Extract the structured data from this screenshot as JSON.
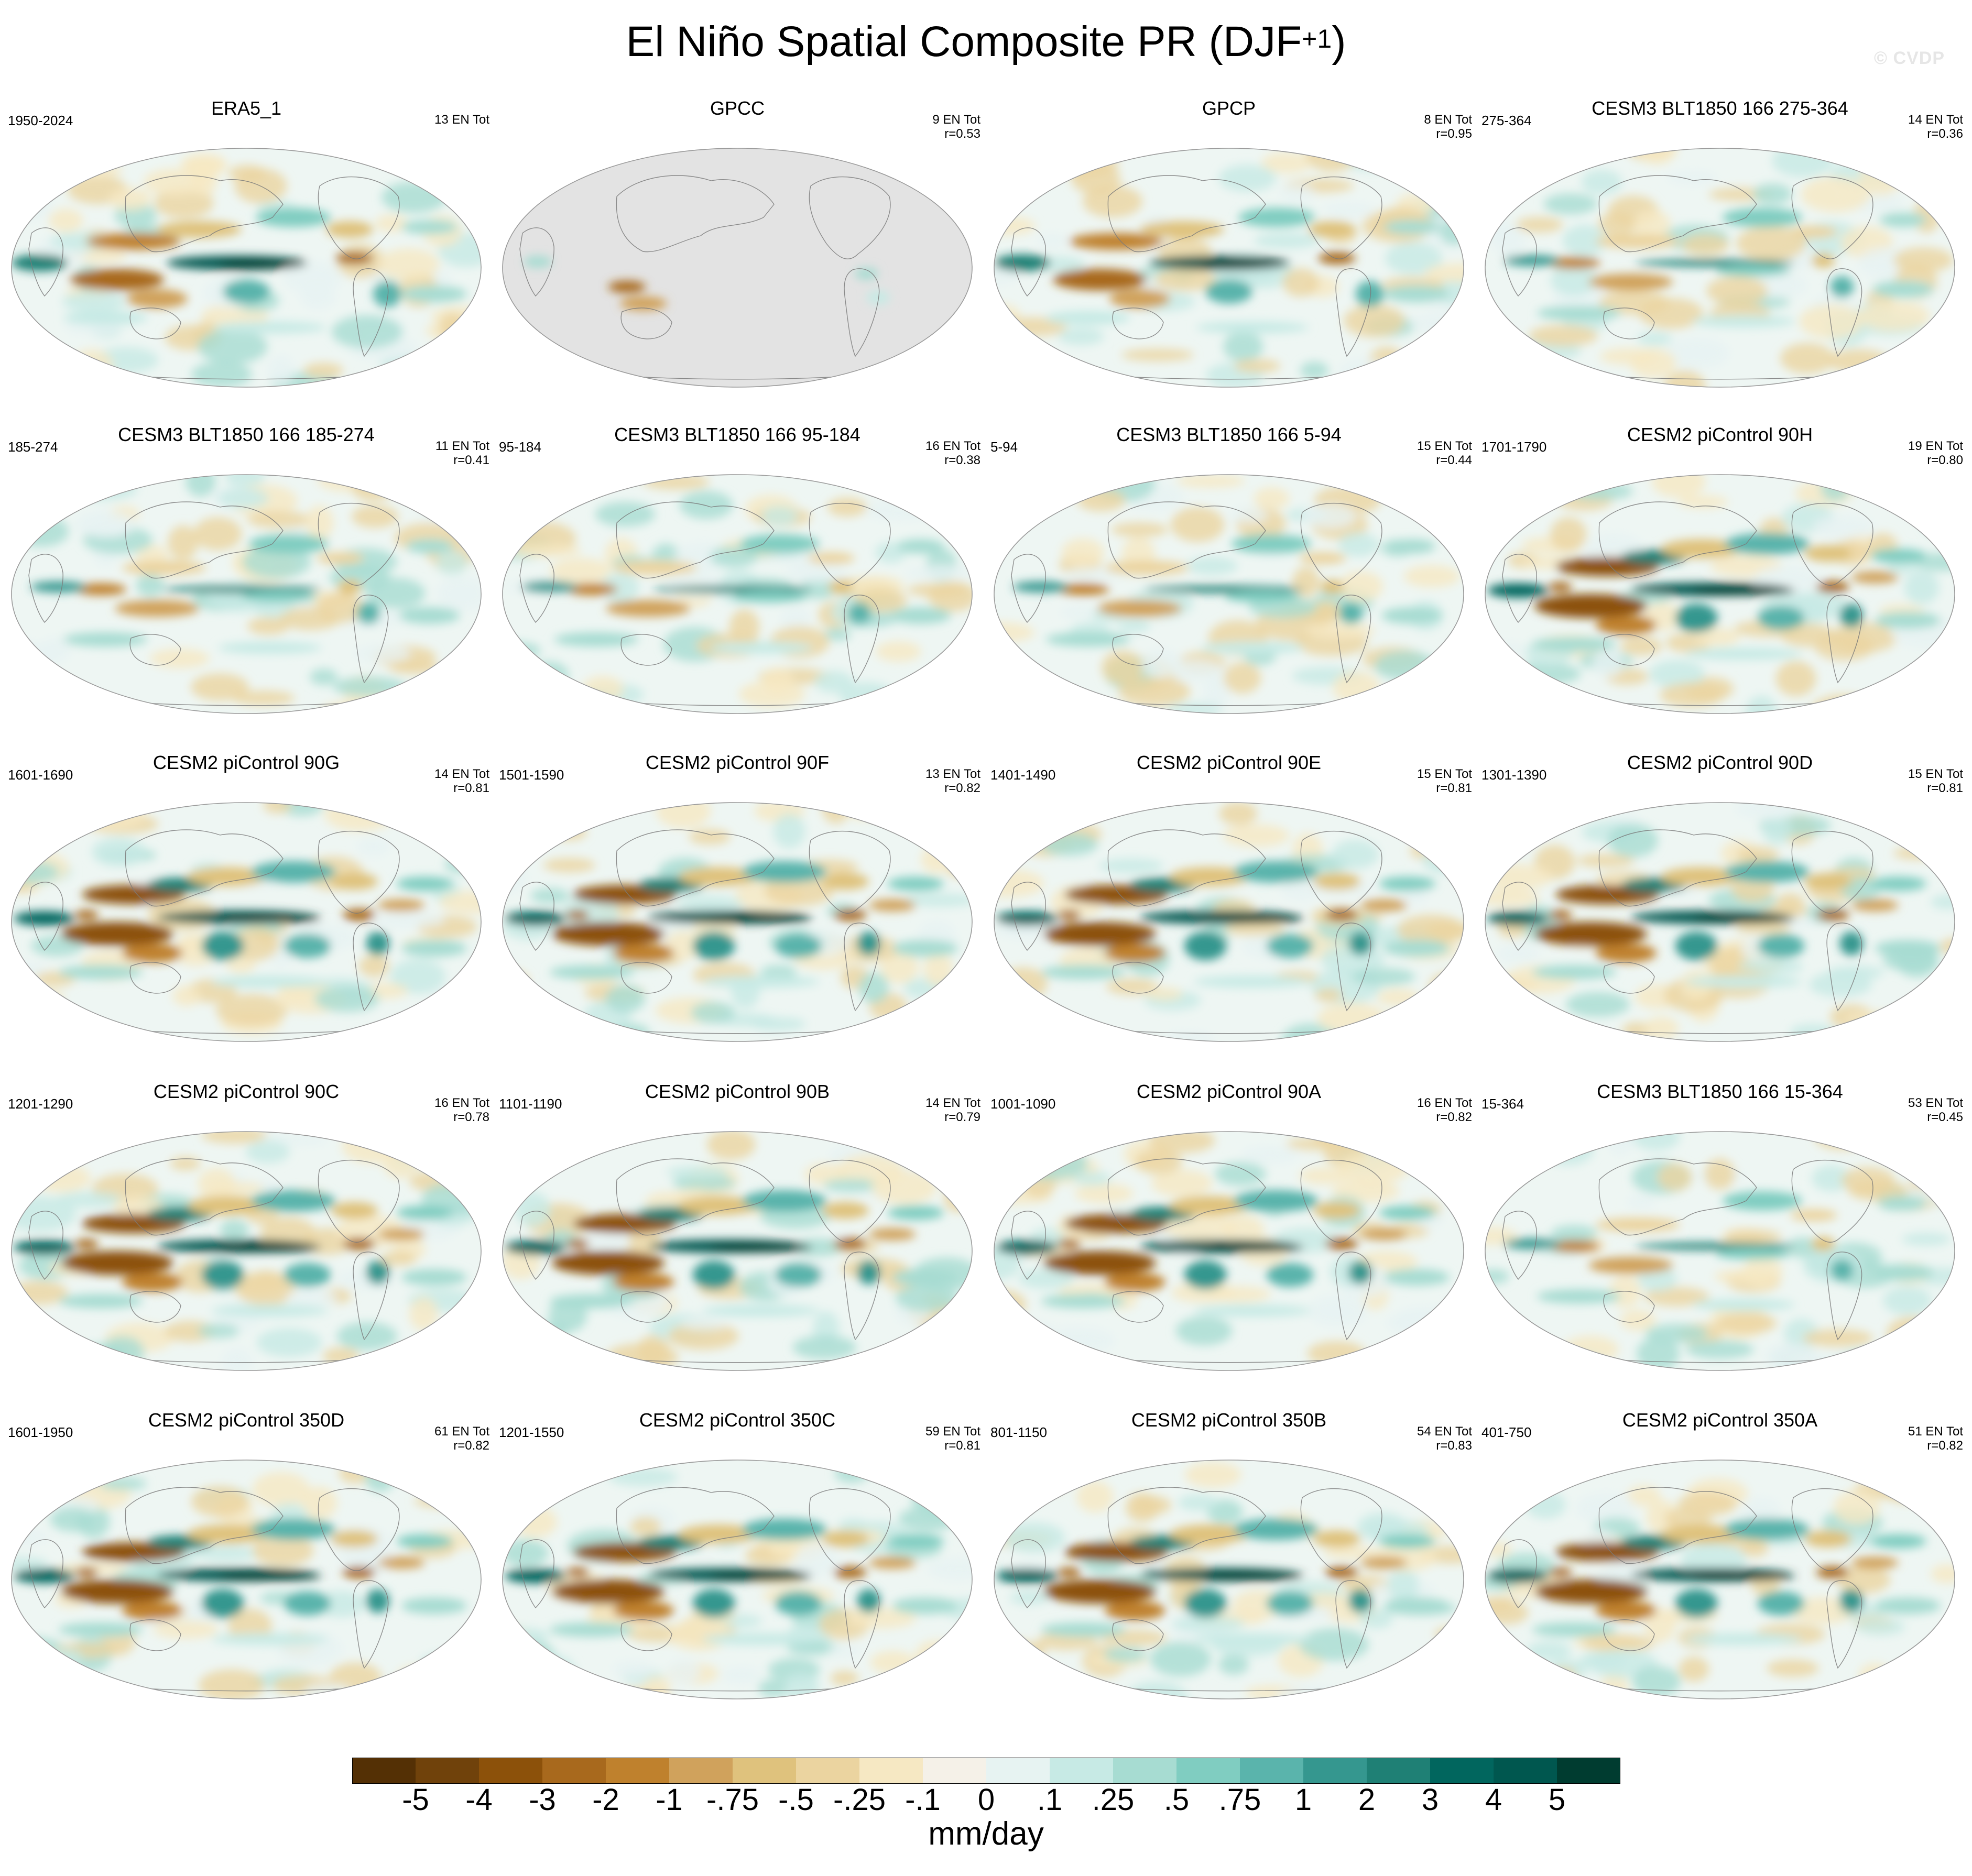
{
  "title_main": "El Niño Spatial Composite PR (DJF",
  "title_sup": "+1",
  "title_close": ")",
  "watermark": "© CVDP",
  "chart_data": {
    "type": "heatmap",
    "projection": "Robinson (Pacific-centered global maps)",
    "layout": "5 rows x 4 columns of panels",
    "panels": [
      {
        "title": "ERA5_1",
        "years": "1950-2024",
        "events": "13 EN Tot",
        "r": ""
      },
      {
        "title": "GPCC",
        "years": "",
        "events": "9 EN Tot",
        "r": "r=0.53",
        "land_only": true
      },
      {
        "title": "GPCP",
        "years": "",
        "events": "8 EN Tot",
        "r": "r=0.95"
      },
      {
        "title": "CESM3 BLT1850 166 275-364",
        "years": "275-364",
        "events": "14 EN Tot",
        "r": "r=0.36"
      },
      {
        "title": "CESM3 BLT1850 166 185-274",
        "years": "185-274",
        "events": "11 EN Tot",
        "r": "r=0.41"
      },
      {
        "title": "CESM3 BLT1850 166 95-184",
        "years": "95-184",
        "events": "16 EN Tot",
        "r": "r=0.38"
      },
      {
        "title": "CESM3 BLT1850 166 5-94",
        "years": "5-94",
        "events": "15 EN Tot",
        "r": "r=0.44"
      },
      {
        "title": "CESM2 piControl 90H",
        "years": "1701-1790",
        "events": "19 EN Tot",
        "r": "r=0.80"
      },
      {
        "title": "CESM2 piControl 90G",
        "years": "1601-1690",
        "events": "14 EN Tot",
        "r": "r=0.81"
      },
      {
        "title": "CESM2 piControl 90F",
        "years": "1501-1590",
        "events": "13 EN Tot",
        "r": "r=0.82"
      },
      {
        "title": "CESM2 piControl 90E",
        "years": "1401-1490",
        "events": "15 EN Tot",
        "r": "r=0.81"
      },
      {
        "title": "CESM2 piControl 90D",
        "years": "1301-1390",
        "events": "15 EN Tot",
        "r": "r=0.81"
      },
      {
        "title": "CESM2 piControl 90C",
        "years": "1201-1290",
        "events": "16 EN Tot",
        "r": "r=0.78"
      },
      {
        "title": "CESM2 piControl 90B",
        "years": "1101-1190",
        "events": "14 EN Tot",
        "r": "r=0.79"
      },
      {
        "title": "CESM2 piControl 90A",
        "years": "1001-1090",
        "events": "16 EN Tot",
        "r": "r=0.82"
      },
      {
        "title": "CESM3 BLT1850 166 15-364",
        "years": "15-364",
        "events": "53 EN Tot",
        "r": "r=0.45"
      },
      {
        "title": "CESM2 piControl 350D",
        "years": "1601-1950",
        "events": "61 EN Tot",
        "r": "r=0.82"
      },
      {
        "title": "CESM2 piControl 350C",
        "years": "1201-1550",
        "events": "59 EN Tot",
        "r": "r=0.81"
      },
      {
        "title": "CESM2 piControl 350B",
        "years": "801-1150",
        "events": "54 EN Tot",
        "r": "r=0.83"
      },
      {
        "title": "CESM2 piControl 350A",
        "years": "401-750",
        "events": "51 EN Tot",
        "r": "r=0.82"
      }
    ],
    "colorbar": {
      "labels": [
        "-5",
        "-4",
        "-3",
        "-2",
        "-1",
        "-.75",
        "-.5",
        "-.25",
        "-.1",
        "0",
        ".1",
        ".25",
        ".5",
        ".75",
        "1",
        "2",
        "3",
        "4",
        "5"
      ],
      "colors": [
        "#543005",
        "#70420b",
        "#8c510a",
        "#a8691d",
        "#bf812d",
        "#d0a25c",
        "#dfc27d",
        "#ebd4a0",
        "#f6e8c3",
        "#f5f1e8",
        "#e7f3f2",
        "#c7eae5",
        "#a7dcd2",
        "#80cdc1",
        "#5ab4ac",
        "#35978f",
        "#1f8075",
        "#01665e",
        "#00574f",
        "#003c30"
      ],
      "unit": "mm/day"
    }
  }
}
